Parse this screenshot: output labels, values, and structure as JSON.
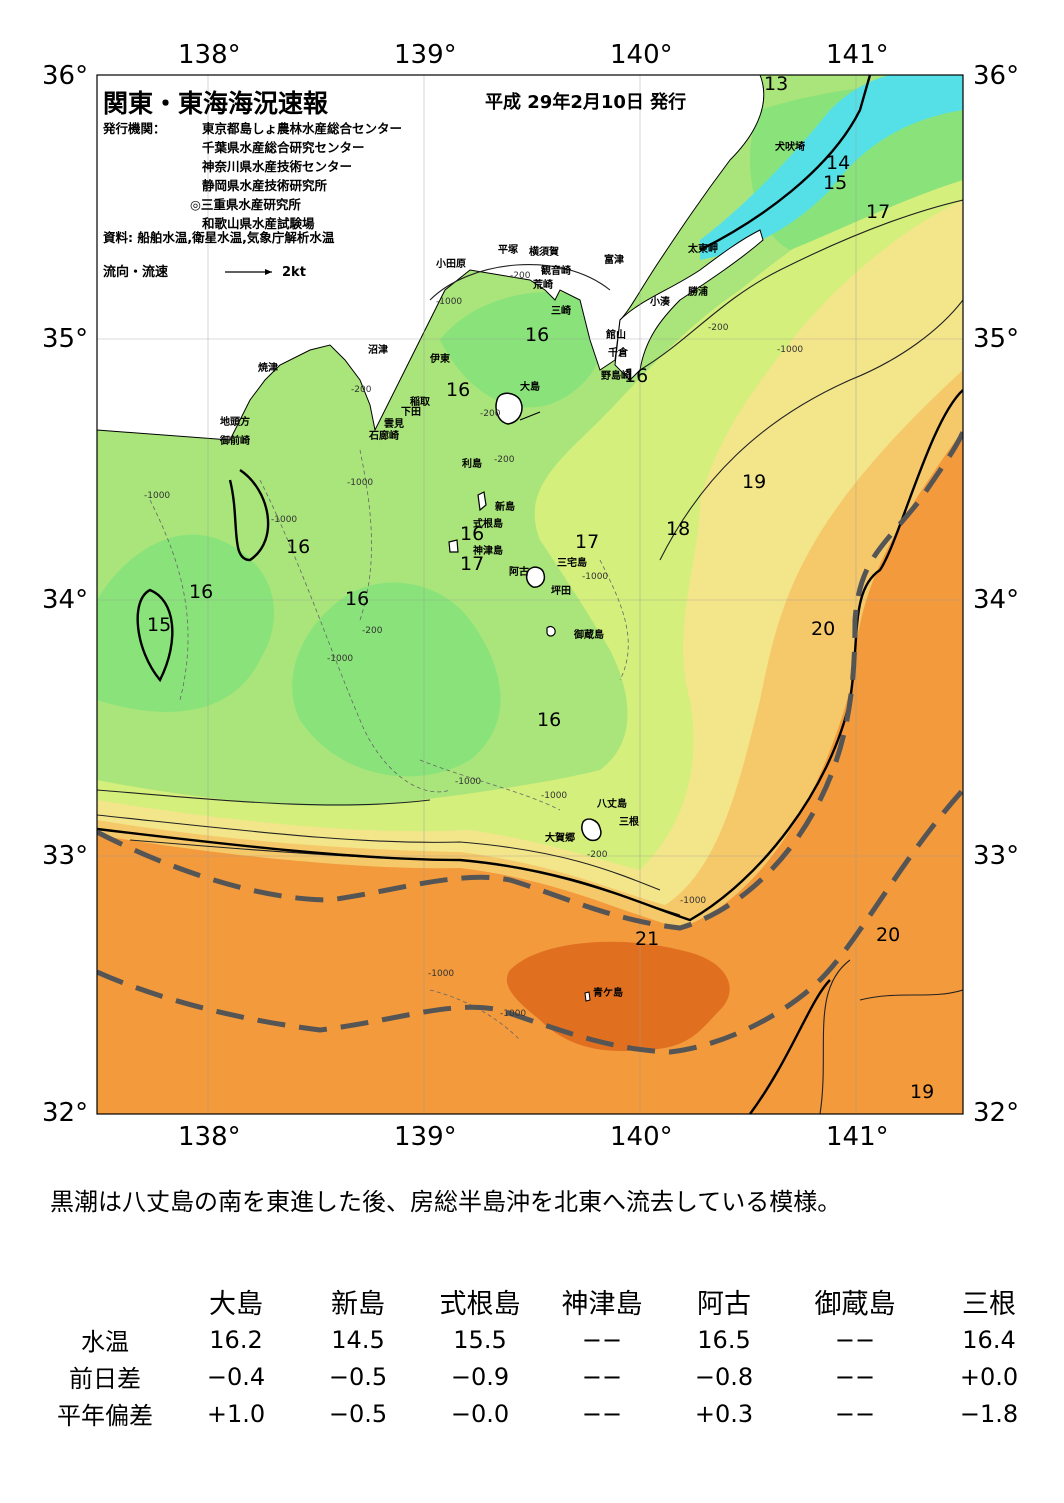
{
  "axes": {
    "lon_top": [
      "138°",
      "139°",
      "140°",
      "141°"
    ],
    "lon_bottom": [
      "138°",
      "139°",
      "140°",
      "141°"
    ],
    "lat_left": [
      "36°",
      "35°",
      "34°",
      "33°",
      "32°"
    ],
    "lat_right": [
      "36°",
      "35°",
      "34°",
      "33°",
      "32°"
    ]
  },
  "header": {
    "title": "関東・東海海況速報",
    "date": "平成 29年2月10日 発行",
    "publisher_label": "発行機関：",
    "publishers": [
      "東京都島しょ農林水産総合センター",
      "千葉県水産総合研究センター",
      "神奈川県水産技術センター",
      "静岡県水産技術研究所",
      "◎三重県水産研究所",
      "和歌山県水産試験場"
    ],
    "source": "資料: 船舶水温,衛星水温,気象庁解析水温",
    "current_label": "流向・流速",
    "current_scale": "2kt"
  },
  "places": [
    "犬吠埼",
    "太東岬",
    "勝浦",
    "小湊",
    "富津",
    "横須賀",
    "観音崎",
    "平塚",
    "小田原",
    "荒崎",
    "三崎",
    "館山",
    "千倉",
    "野島崎",
    "沼津",
    "伊東",
    "稲取",
    "下田",
    "雲見",
    "石廊崎",
    "焼津",
    "地頭方",
    "御前崎",
    "大島",
    "利島",
    "新島",
    "式根島",
    "神津島",
    "三宅島",
    "阿古",
    "坪田",
    "御蔵島",
    "八丈島",
    "三根",
    "大賀郷",
    "青ケ島"
  ],
  "isotherms": [
    "13",
    "14",
    "15",
    "17",
    "16",
    "16",
    "16",
    "19",
    "18",
    "17",
    "16",
    "17",
    "16",
    "16",
    "15",
    "16",
    "20",
    "16",
    "21",
    "20",
    "19"
  ],
  "depths": [
    "-200",
    "-1000",
    "-200",
    "-200",
    "-1000",
    "-200",
    "-1000",
    "-1000",
    "-200",
    "-1000",
    "-1000",
    "-1000",
    "-200",
    "-1000",
    "-1000",
    "-200",
    "-1000",
    "-1000",
    "-1000"
  ],
  "summary": "黒潮は八丈島の南を東進した後、房総半島沖を北東へ流去している模様。",
  "table": {
    "columns": [
      "大島",
      "新島",
      "式根島",
      "神津島",
      "阿古",
      "御蔵島",
      "三根"
    ],
    "rows": [
      {
        "label": "水温",
        "values": [
          "16.2",
          "14.5",
          "15.5",
          "−−",
          "16.5",
          "−−",
          "16.4"
        ]
      },
      {
        "label": "前日差",
        "values": [
          "−0.4",
          "−0.5",
          "−0.9",
          "−−",
          "−0.8",
          "−−",
          "+0.0"
        ]
      },
      {
        "label": "平年偏差",
        "values": [
          "+1.0",
          "−0.5",
          "−0.0",
          "−−",
          "+0.3",
          "−−",
          "−1.8"
        ]
      }
    ]
  },
  "colors": {
    "cold_cyan": "#55e0e8",
    "green_cool": "#8ae37a",
    "green_mid": "#a9e57a",
    "yellow_green": "#d4ef7c",
    "yellow": "#f3e58a",
    "light_orange": "#f5c96a",
    "orange": "#f39a3c",
    "deep_orange": "#f08a26",
    "warm_core": "#e07020",
    "kuroshio_axis": "#555555"
  }
}
